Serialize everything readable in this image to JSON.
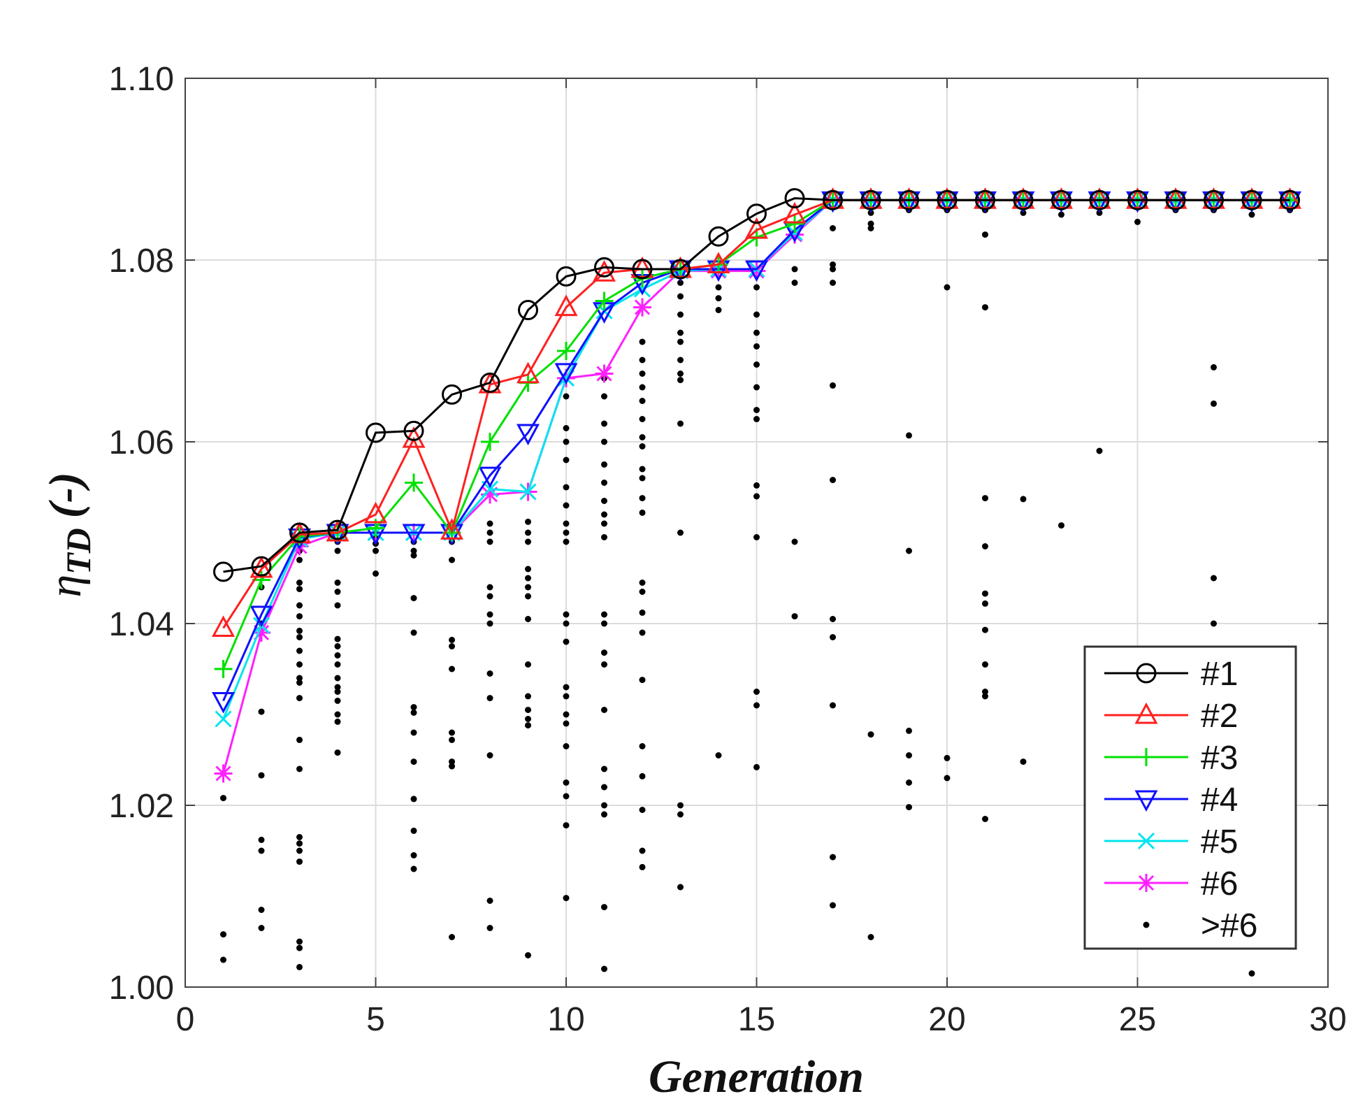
{
  "chart_data": {
    "type": "line",
    "title": "",
    "xlabel": "Generation",
    "ylabel_symbol": "η",
    "ylabel_subscript": "TD",
    "ylabel_suffix": "(-)",
    "xlim": [
      0,
      30
    ],
    "ylim": [
      1.0,
      1.1
    ],
    "xticks": [
      0,
      5,
      10,
      15,
      20,
      25,
      30
    ],
    "yticks": [
      1.0,
      1.02,
      1.04,
      1.06,
      1.08,
      1.1
    ],
    "xtick_labels": [
      "0",
      "5",
      "10",
      "15",
      "20",
      "25",
      "30"
    ],
    "ytick_labels": [
      "1.00",
      "1.02",
      "1.04",
      "1.06",
      "1.08",
      "1.10"
    ],
    "grid": true,
    "legend_position": "bottom-right",
    "x": [
      1,
      2,
      3,
      4,
      5,
      6,
      7,
      8,
      9,
      10,
      11,
      12,
      13,
      14,
      15,
      16,
      17,
      18,
      19,
      20,
      21,
      22,
      23,
      24,
      25,
      26,
      27,
      28,
      29
    ],
    "series": [
      {
        "name": "#1",
        "color": "#000000",
        "marker": "circle",
        "values": [
          1.0457,
          1.0463,
          1.05,
          1.0503,
          1.061,
          1.0612,
          1.0652,
          1.0665,
          1.0745,
          1.0782,
          1.0792,
          1.079,
          1.079,
          1.0826,
          1.0851,
          1.0868,
          1.0866,
          1.0866,
          1.0866,
          1.0866,
          1.0866,
          1.0866,
          1.0866,
          1.0866,
          1.0866,
          1.0866,
          1.0866,
          1.0866,
          1.0866
        ]
      },
      {
        "name": "#2",
        "color": "#ff2020",
        "marker": "triangle-up",
        "values": [
          1.0395,
          1.046,
          1.0498,
          1.05,
          1.052,
          1.0603,
          1.0502,
          1.0663,
          1.0674,
          1.0748,
          1.0786,
          1.079,
          1.079,
          1.0795,
          1.0833,
          1.085,
          1.0866,
          1.0866,
          1.0866,
          1.0866,
          1.0866,
          1.0866,
          1.0866,
          1.0866,
          1.0866,
          1.0866,
          1.0866,
          1.0866,
          1.0866
        ]
      },
      {
        "name": "#3",
        "color": "#00e000",
        "marker": "plus",
        "values": [
          1.035,
          1.0448,
          1.0496,
          1.05,
          1.0505,
          1.0555,
          1.05,
          1.06,
          1.0665,
          1.07,
          1.0755,
          1.078,
          1.079,
          1.0795,
          1.0825,
          1.084,
          1.0866,
          1.0866,
          1.0866,
          1.0866,
          1.0866,
          1.0866,
          1.0866,
          1.0866,
          1.0866,
          1.0866,
          1.0866,
          1.0866,
          1.0866
        ]
      },
      {
        "name": "#4",
        "color": "#1010ff",
        "marker": "triangle-down",
        "values": [
          1.0315,
          1.041,
          1.0495,
          1.05,
          1.05,
          1.05,
          1.05,
          1.0563,
          1.061,
          1.0677,
          1.0744,
          1.0775,
          1.079,
          1.079,
          1.079,
          1.0833,
          1.0866,
          1.0866,
          1.0866,
          1.0866,
          1.0866,
          1.0866,
          1.0866,
          1.0866,
          1.0866,
          1.0866,
          1.0866,
          1.0866,
          1.0866
        ]
      },
      {
        "name": "#5",
        "color": "#00e5ee",
        "marker": "x",
        "values": [
          1.0295,
          1.0398,
          1.0493,
          1.05,
          1.05,
          1.05,
          1.05,
          1.0548,
          1.0545,
          1.067,
          1.0744,
          1.0768,
          1.0788,
          1.079,
          1.079,
          1.083,
          1.0866,
          1.0866,
          1.0866,
          1.0866,
          1.0866,
          1.0866,
          1.0866,
          1.0866,
          1.0866,
          1.0866,
          1.0866,
          1.0866,
          1.0866
        ]
      },
      {
        "name": "#6",
        "color": "#ff20ff",
        "marker": "asterisk",
        "values": [
          1.0235,
          1.039,
          1.0485,
          1.05,
          1.05,
          1.05,
          1.05,
          1.0542,
          1.0545,
          1.067,
          1.0675,
          1.0748,
          1.0788,
          1.0788,
          1.0788,
          1.0828,
          1.0866,
          1.0866,
          1.0866,
          1.0866,
          1.0866,
          1.0866,
          1.0866,
          1.0866,
          1.0866,
          1.0866,
          1.0866,
          1.0866,
          1.0866
        ]
      }
    ],
    "scatter_series": {
      "name": ">#6",
      "color": "#000000",
      "marker": "dot",
      "points": [
        [
          1,
          1.0208
        ],
        [
          1,
          1.0058
        ],
        [
          1,
          1.003
        ],
        [
          2,
          1.044
        ],
        [
          2,
          1.04
        ],
        [
          2,
          1.0303
        ],
        [
          2,
          1.0233
        ],
        [
          2,
          1.0162
        ],
        [
          2,
          1.015
        ],
        [
          2,
          1.0085
        ],
        [
          2,
          1.0065
        ],
        [
          3,
          1.048
        ],
        [
          3,
          1.047
        ],
        [
          3,
          1.0445
        ],
        [
          3,
          1.0438
        ],
        [
          3,
          1.042
        ],
        [
          3,
          1.0408
        ],
        [
          3,
          1.0392
        ],
        [
          3,
          1.0385
        ],
        [
          3,
          1.037
        ],
        [
          3,
          1.0355
        ],
        [
          3,
          1.034
        ],
        [
          3,
          1.0335
        ],
        [
          3,
          1.0318
        ],
        [
          3,
          1.0272
        ],
        [
          3,
          1.024
        ],
        [
          3,
          1.0165
        ],
        [
          3,
          1.0158
        ],
        [
          3,
          1.015
        ],
        [
          3,
          1.0138
        ],
        [
          3,
          1.005
        ],
        [
          3,
          1.0043
        ],
        [
          3,
          1.0022
        ],
        [
          4,
          1.049
        ],
        [
          4,
          1.048
        ],
        [
          4,
          1.0445
        ],
        [
          4,
          1.0435
        ],
        [
          4,
          1.042
        ],
        [
          4,
          1.0383
        ],
        [
          4,
          1.0375
        ],
        [
          4,
          1.0365
        ],
        [
          4,
          1.0355
        ],
        [
          4,
          1.034
        ],
        [
          4,
          1.033
        ],
        [
          4,
          1.0325
        ],
        [
          4,
          1.0315
        ],
        [
          4,
          1.03
        ],
        [
          4,
          1.0292
        ],
        [
          4,
          1.0258
        ],
        [
          5,
          1.0495
        ],
        [
          5,
          1.0488
        ],
        [
          5,
          1.048
        ],
        [
          5,
          1.0455
        ],
        [
          6,
          1.049
        ],
        [
          6,
          1.048
        ],
        [
          6,
          1.0475
        ],
        [
          6,
          1.0428
        ],
        [
          6,
          1.039
        ],
        [
          6,
          1.0308
        ],
        [
          6,
          1.0302
        ],
        [
          6,
          1.028
        ],
        [
          6,
          1.0248
        ],
        [
          6,
          1.0207
        ],
        [
          6,
          1.0172
        ],
        [
          6,
          1.0145
        ],
        [
          6,
          1.013
        ],
        [
          7,
          1.049
        ],
        [
          7,
          1.047
        ],
        [
          7,
          1.0382
        ],
        [
          7,
          1.0375
        ],
        [
          7,
          1.035
        ],
        [
          7,
          1.028
        ],
        [
          7,
          1.0272
        ],
        [
          7,
          1.0248
        ],
        [
          7,
          1.0243
        ],
        [
          7,
          1.0055
        ],
        [
          8,
          1.051
        ],
        [
          8,
          1.05
        ],
        [
          8,
          1.049
        ],
        [
          8,
          1.044
        ],
        [
          8,
          1.043
        ],
        [
          8,
          1.041
        ],
        [
          8,
          1.04
        ],
        [
          8,
          1.0345
        ],
        [
          8,
          1.0318
        ],
        [
          8,
          1.0255
        ],
        [
          8,
          1.0095
        ],
        [
          8,
          1.0065
        ],
        [
          9,
          1.0512
        ],
        [
          9,
          1.05
        ],
        [
          9,
          1.049
        ],
        [
          9,
          1.046
        ],
        [
          9,
          1.045
        ],
        [
          9,
          1.044
        ],
        [
          9,
          1.043
        ],
        [
          9,
          1.0405
        ],
        [
          9,
          1.0355
        ],
        [
          9,
          1.032
        ],
        [
          9,
          1.0305
        ],
        [
          9,
          1.0295
        ],
        [
          9,
          1.0288
        ],
        [
          9,
          1.0035
        ],
        [
          10,
          1.065
        ],
        [
          10,
          1.0615
        ],
        [
          10,
          1.06
        ],
        [
          10,
          1.058
        ],
        [
          10,
          1.055
        ],
        [
          10,
          1.053
        ],
        [
          10,
          1.051
        ],
        [
          10,
          1.05
        ],
        [
          10,
          1.049
        ],
        [
          10,
          1.041
        ],
        [
          10,
          1.04
        ],
        [
          10,
          1.038
        ],
        [
          10,
          1.033
        ],
        [
          10,
          1.032
        ],
        [
          10,
          1.03
        ],
        [
          10,
          1.029
        ],
        [
          10,
          1.0265
        ],
        [
          10,
          1.0225
        ],
        [
          10,
          1.021
        ],
        [
          10,
          1.0178
        ],
        [
          10,
          1.0098
        ],
        [
          11,
          1.067
        ],
        [
          11,
          1.065
        ],
        [
          11,
          1.062
        ],
        [
          11,
          1.06
        ],
        [
          11,
          1.0575
        ],
        [
          11,
          1.0555
        ],
        [
          11,
          1.0535
        ],
        [
          11,
          1.052
        ],
        [
          11,
          1.051
        ],
        [
          11,
          1.0495
        ],
        [
          11,
          1.041
        ],
        [
          11,
          1.04
        ],
        [
          11,
          1.0368
        ],
        [
          11,
          1.0355
        ],
        [
          11,
          1.0305
        ],
        [
          11,
          1.024
        ],
        [
          11,
          1.022
        ],
        [
          11,
          1.02
        ],
        [
          11,
          1.019
        ],
        [
          11,
          1.0088
        ],
        [
          11,
          1.002
        ],
        [
          12,
          1.071
        ],
        [
          12,
          1.069
        ],
        [
          12,
          1.0675
        ],
        [
          12,
          1.066
        ],
        [
          12,
          1.0645
        ],
        [
          12,
          1.0625
        ],
        [
          12,
          1.0605
        ],
        [
          12,
          1.0595
        ],
        [
          12,
          1.057
        ],
        [
          12,
          1.056
        ],
        [
          12,
          1.0538
        ],
        [
          12,
          1.0522
        ],
        [
          12,
          1.0445
        ],
        [
          12,
          1.0435
        ],
        [
          12,
          1.0412
        ],
        [
          12,
          1.039
        ],
        [
          12,
          1.0338
        ],
        [
          12,
          1.0265
        ],
        [
          12,
          1.0232
        ],
        [
          12,
          1.0195
        ],
        [
          12,
          1.015
        ],
        [
          12,
          1.0132
        ],
        [
          13,
          1.0775
        ],
        [
          13,
          1.076
        ],
        [
          13,
          1.074
        ],
        [
          13,
          1.072
        ],
        [
          13,
          1.071
        ],
        [
          13,
          1.069
        ],
        [
          13,
          1.0675
        ],
        [
          13,
          1.0668
        ],
        [
          13,
          1.062
        ],
        [
          13,
          1.05
        ],
        [
          13,
          1.02
        ],
        [
          13,
          1.019
        ],
        [
          13,
          1.011
        ],
        [
          14,
          1.077
        ],
        [
          14,
          1.0758
        ],
        [
          14,
          1.0745
        ],
        [
          14,
          1.0255
        ],
        [
          15,
          1.077
        ],
        [
          15,
          1.074
        ],
        [
          15,
          1.072
        ],
        [
          15,
          1.0705
        ],
        [
          15,
          1.0685
        ],
        [
          15,
          1.066
        ],
        [
          15,
          1.0635
        ],
        [
          15,
          1.0625
        ],
        [
          15,
          1.0552
        ],
        [
          15,
          1.054
        ],
        [
          15,
          1.0495
        ],
        [
          15,
          1.0325
        ],
        [
          15,
          1.031
        ],
        [
          15,
          1.0242
        ],
        [
          16,
          1.079
        ],
        [
          16,
          1.0775
        ],
        [
          16,
          1.049
        ],
        [
          16,
          1.0408
        ],
        [
          17,
          1.0835
        ],
        [
          17,
          1.0795
        ],
        [
          17,
          1.079
        ],
        [
          17,
          1.0775
        ],
        [
          17,
          1.0662
        ],
        [
          17,
          1.0558
        ],
        [
          17,
          1.0405
        ],
        [
          17,
          1.0385
        ],
        [
          17,
          1.031
        ],
        [
          17,
          1.0143
        ],
        [
          17,
          1.009
        ],
        [
          18,
          1.0852
        ],
        [
          18,
          1.084
        ],
        [
          18,
          1.0835
        ],
        [
          18,
          1.0278
        ],
        [
          18,
          1.0055
        ],
        [
          19,
          1.0855
        ],
        [
          19,
          1.0607
        ],
        [
          19,
          1.048
        ],
        [
          19,
          1.0282
        ],
        [
          19,
          1.0255
        ],
        [
          19,
          1.0225
        ],
        [
          19,
          1.0198
        ],
        [
          20,
          1.0855
        ],
        [
          20,
          1.077
        ],
        [
          20,
          1.0252
        ],
        [
          20,
          1.023
        ],
        [
          21,
          1.0855
        ],
        [
          21,
          1.0828
        ],
        [
          21,
          1.0748
        ],
        [
          21,
          1.0538
        ],
        [
          21,
          1.0485
        ],
        [
          21,
          1.0433
        ],
        [
          21,
          1.0422
        ],
        [
          21,
          1.0393
        ],
        [
          21,
          1.0355
        ],
        [
          21,
          1.0325
        ],
        [
          21,
          1.032
        ],
        [
          21,
          1.0185
        ],
        [
          22,
          1.0852
        ],
        [
          22,
          1.0537
        ],
        [
          22,
          1.0248
        ],
        [
          23,
          1.085
        ],
        [
          23,
          1.0508
        ],
        [
          24,
          1.0852
        ],
        [
          24,
          1.059
        ],
        [
          25,
          1.0842
        ],
        [
          26,
          1.0855
        ],
        [
          27,
          1.0855
        ],
        [
          27,
          1.0682
        ],
        [
          27,
          1.0642
        ],
        [
          27,
          1.045
        ],
        [
          27,
          1.04
        ],
        [
          28,
          1.085
        ],
        [
          28,
          1.0015
        ],
        [
          29,
          1.0855
        ]
      ]
    },
    "legend": [
      "#1",
      "#2",
      "#3",
      "#4",
      "#5",
      "#6",
      ">#6"
    ]
  }
}
